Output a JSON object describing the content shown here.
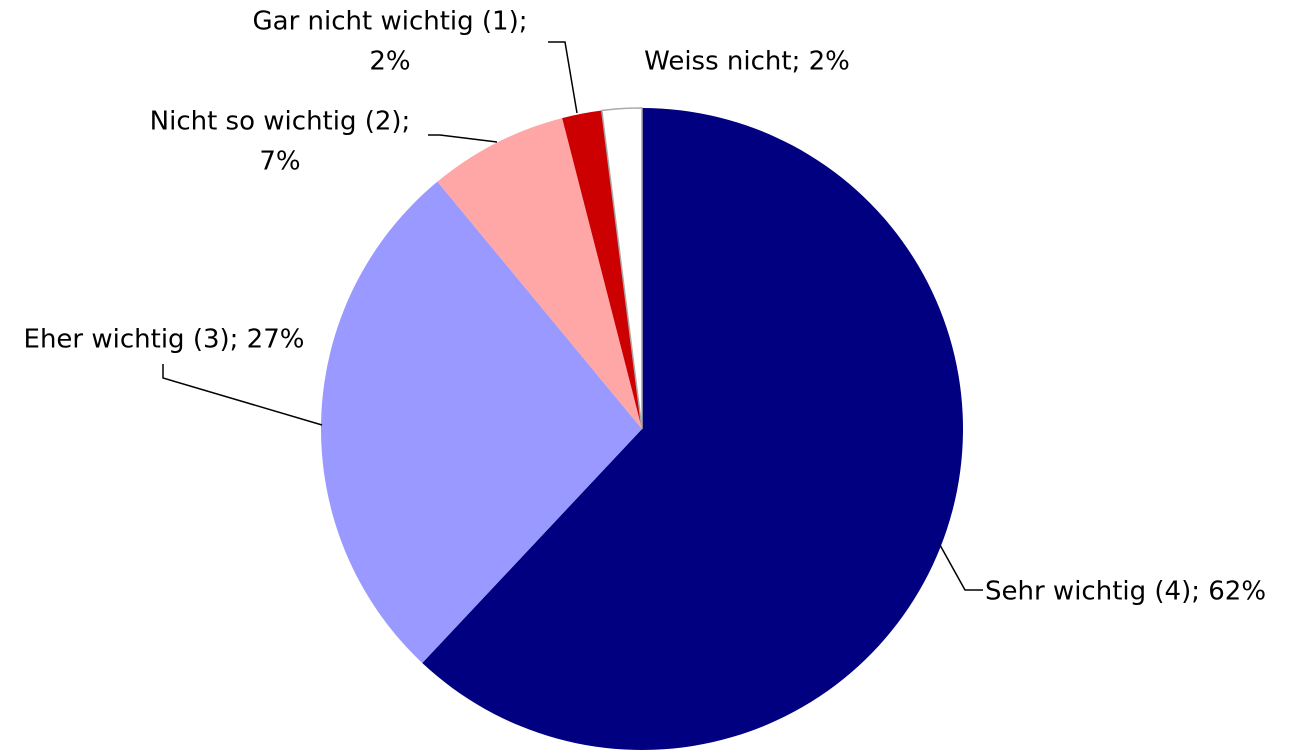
{
  "chart_data": {
    "type": "pie",
    "values": [
      62,
      27,
      7,
      2,
      2
    ],
    "value_labels": [
      [
        "Sehr wichtig (4); 62%"
      ],
      [
        "Eher wichtig (3); 27%"
      ],
      [
        "Nicht so wichtig (2);",
        "7%"
      ],
      [
        "Gar nicht wichtig (1);",
        "2%"
      ],
      [
        "Weiss nicht; 2%"
      ]
    ],
    "colors": [
      "#000080",
      "#9999ff",
      "#ffa6a6",
      "#cc0000",
      "#ffffff"
    ]
  }
}
